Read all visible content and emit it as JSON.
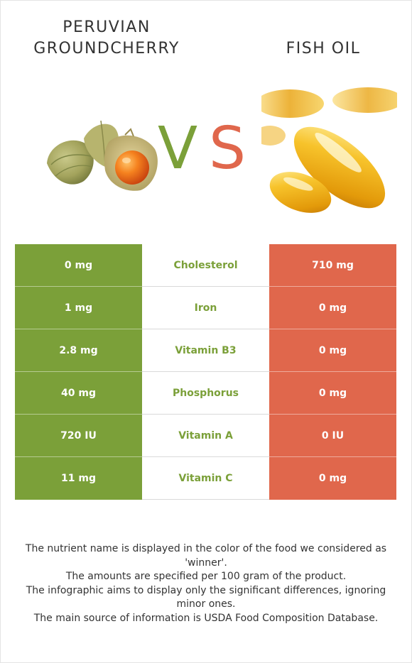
{
  "left_food": {
    "title_lines": [
      "PERUVIAN",
      "GROUNDCHERRY"
    ],
    "color": "#7ba039"
  },
  "right_food": {
    "title": "FISH OIL",
    "color": "#e0674c"
  },
  "vs": {
    "v": "V",
    "s": "S"
  },
  "rows": [
    {
      "left": "0 mg",
      "nutrient": "Cholesterol",
      "right": "710 mg"
    },
    {
      "left": "1 mg",
      "nutrient": "Iron",
      "right": "0 mg"
    },
    {
      "left": "2.8 mg",
      "nutrient": "Vitamin B3",
      "right": "0 mg"
    },
    {
      "left": "40 mg",
      "nutrient": "Phosphorus",
      "right": "0 mg"
    },
    {
      "left": "720 IU",
      "nutrient": "Vitamin A",
      "right": "0 IU"
    },
    {
      "left": "11 mg",
      "nutrient": "Vitamin C",
      "right": "0 mg"
    }
  ],
  "notes": [
    "The nutrient name is displayed in the color of the food we considered as 'winner'.",
    "The amounts are specified per 100 gram of the product.",
    "The infographic aims to display only the significant differences, ignoring minor ones.",
    "The main source of information is USDA Food Composition Database."
  ]
}
